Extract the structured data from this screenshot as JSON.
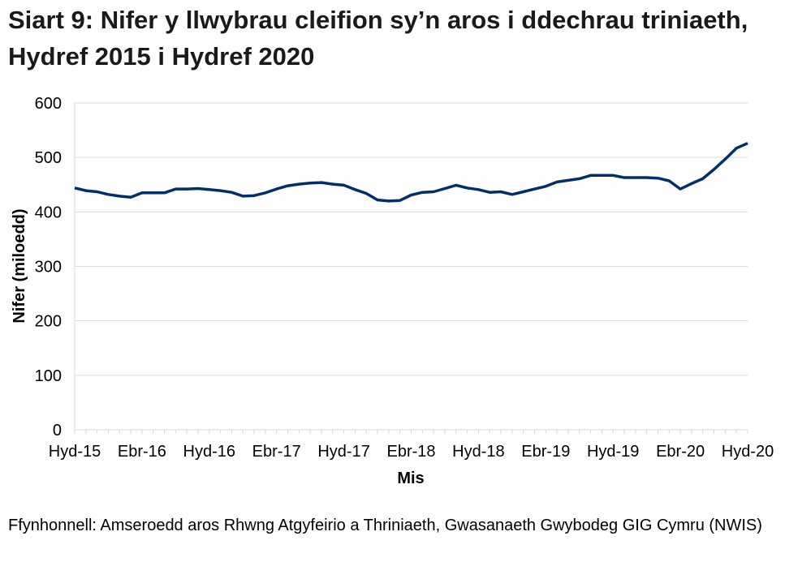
{
  "title": "Siart 9: Nifer y llwybrau cleifion sy’n aros i ddechrau triniaeth, Hydref 2015 i Hydref 2020",
  "source": "Ffynhonnell: Amseroedd aros Rhwng Atgyfeirio a Thriniaeth, Gwasanaeth Gwybodeg GIG Cymru (NWIS)",
  "chart_data": {
    "type": "line",
    "title": "Siart 9: Nifer y llwybrau cleifion sy’n aros i ddechrau triniaeth, Hydref 2015 i Hydref 2020",
    "xlabel": "Mis",
    "ylabel": "Nifer (miloedd)",
    "ylim": [
      0,
      600
    ],
    "yticks": [
      0,
      100,
      200,
      300,
      400,
      500,
      600
    ],
    "x_tick_labels": [
      "Hyd-15",
      "Ebr-16",
      "Hyd-16",
      "Ebr-17",
      "Hyd-17",
      "Ebr-18",
      "Hyd-18",
      "Ebr-19",
      "Hyd-19",
      "Ebr-20",
      "Hyd-20"
    ],
    "x_tick_every_months": 6,
    "grid": "horizontal",
    "line_color": "#002f6c",
    "series": [
      {
        "values": [
          444,
          439,
          437,
          432,
          429,
          427,
          435,
          435,
          435,
          442,
          442,
          443,
          441,
          439,
          436,
          429,
          430,
          435,
          442,
          448,
          451,
          453,
          454,
          451,
          449,
          441,
          434,
          422,
          420,
          421,
          431,
          436,
          437,
          443,
          449,
          444,
          441,
          436,
          437,
          432,
          437,
          442,
          447,
          455,
          458,
          461,
          467,
          467,
          467,
          463,
          463,
          463,
          462,
          457,
          442,
          452,
          461,
          478,
          497,
          517,
          526
        ]
      }
    ]
  }
}
